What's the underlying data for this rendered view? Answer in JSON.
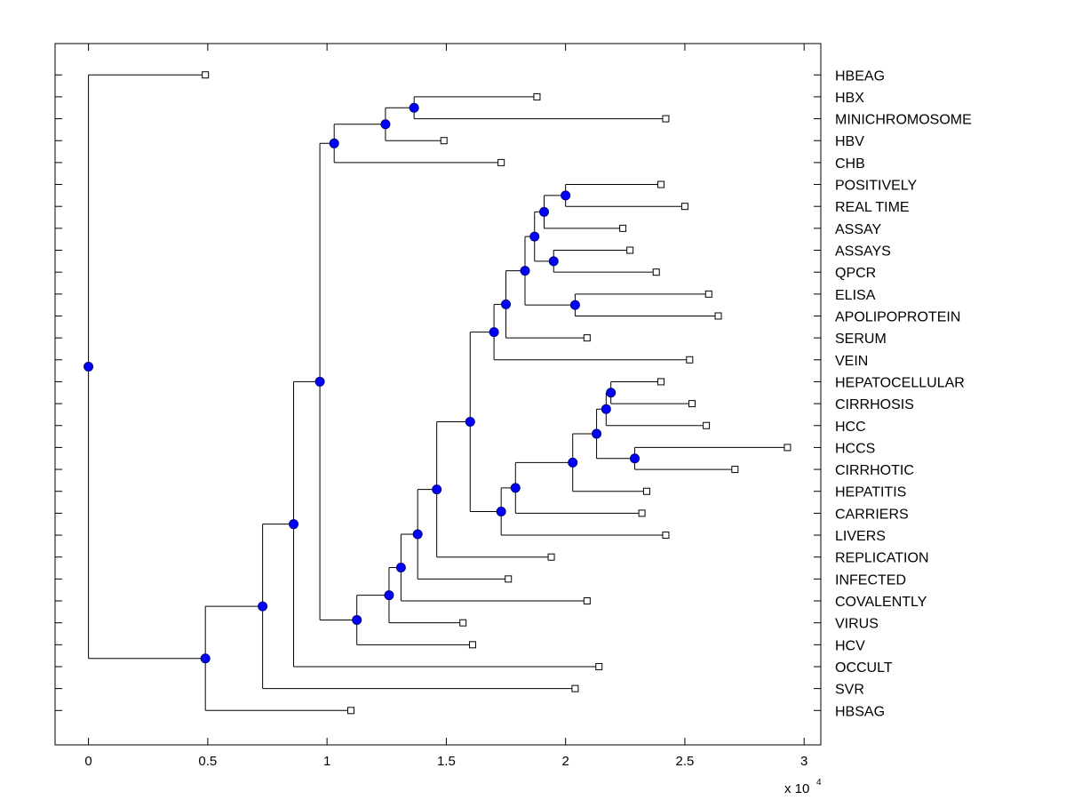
{
  "chart_data": {
    "type": "dendrogram",
    "title": "",
    "xlabel": "",
    "x_multiplier": "x 10",
    "x_multiplier_exponent": "4",
    "xlim": [
      -0.14,
      3.07
    ],
    "x_ticks": [
      {
        "value": 0,
        "label": "0"
      },
      {
        "value": 0.5,
        "label": "0.5"
      },
      {
        "value": 1,
        "label": "1"
      },
      {
        "value": 1.5,
        "label": "1.5"
      },
      {
        "value": 2,
        "label": "2"
      },
      {
        "value": 2.5,
        "label": "2.5"
      },
      {
        "value": 3,
        "label": "3"
      }
    ],
    "leaves": [
      {
        "label": "HBEAG",
        "x": 0.49
      },
      {
        "label": "HBX",
        "x": 1.88
      },
      {
        "label": "MINICHROMOSOME",
        "x": 2.42
      },
      {
        "label": "HBV",
        "x": 1.49
      },
      {
        "label": "CHB",
        "x": 1.73
      },
      {
        "label": "POSITIVELY",
        "x": 2.4
      },
      {
        "label": "REAL TIME",
        "x": 2.5
      },
      {
        "label": "ASSAY",
        "x": 2.24
      },
      {
        "label": "ASSAYS",
        "x": 2.27
      },
      {
        "label": "QPCR",
        "x": 2.38
      },
      {
        "label": "ELISA",
        "x": 2.6
      },
      {
        "label": "APOLIPOPROTEIN",
        "x": 2.64
      },
      {
        "label": "SERUM",
        "x": 2.09
      },
      {
        "label": "VEIN",
        "x": 2.52
      },
      {
        "label": "HEPATOCELLULAR",
        "x": 2.4
      },
      {
        "label": "CIRRHOSIS",
        "x": 2.53
      },
      {
        "label": "HCC",
        "x": 2.59
      },
      {
        "label": "HCCS",
        "x": 2.93
      },
      {
        "label": "CIRRHOTIC",
        "x": 2.71
      },
      {
        "label": "HEPATITIS",
        "x": 2.34
      },
      {
        "label": "CARRIERS",
        "x": 2.32
      },
      {
        "label": "LIVERS",
        "x": 2.42
      },
      {
        "label": "REPLICATION",
        "x": 1.94
      },
      {
        "label": "INFECTED",
        "x": 1.76
      },
      {
        "label": "COVALENTLY",
        "x": 2.09
      },
      {
        "label": "VIRUS",
        "x": 1.57
      },
      {
        "label": "HCV",
        "x": 1.61
      },
      {
        "label": "OCCULT",
        "x": 2.14
      },
      {
        "label": "SVR",
        "x": 2.04
      },
      {
        "label": "HBSAG",
        "x": 1.1
      }
    ],
    "nodes": [
      {
        "id": "n1",
        "x": 1.365,
        "children": [
          1,
          2
        ]
      },
      {
        "id": "n2",
        "x": 1.245,
        "children": [
          "n1",
          3
        ]
      },
      {
        "id": "n3",
        "x": 1.03,
        "children": [
          "n2",
          4
        ]
      },
      {
        "id": "n4",
        "x": 2.0,
        "children": [
          5,
          6
        ]
      },
      {
        "id": "n5",
        "x": 1.91,
        "children": [
          "n4",
          7
        ]
      },
      {
        "id": "n6",
        "x": 1.95,
        "children": [
          8,
          9
        ]
      },
      {
        "id": "n7",
        "x": 1.87,
        "children": [
          "n5",
          "n6"
        ]
      },
      {
        "id": "n8",
        "x": 2.04,
        "children": [
          10,
          11
        ]
      },
      {
        "id": "n9",
        "x": 1.83,
        "children": [
          "n7",
          "n8"
        ]
      },
      {
        "id": "n10",
        "x": 1.75,
        "children": [
          "n9",
          12
        ]
      },
      {
        "id": "n11",
        "x": 1.7,
        "children": [
          "n10",
          13
        ]
      },
      {
        "id": "n12",
        "x": 2.19,
        "children": [
          14,
          15
        ]
      },
      {
        "id": "n13",
        "x": 2.17,
        "children": [
          "n12",
          16
        ]
      },
      {
        "id": "n14",
        "x": 2.29,
        "children": [
          17,
          18
        ]
      },
      {
        "id": "n15",
        "x": 2.13,
        "children": [
          "n13",
          "n14"
        ]
      },
      {
        "id": "n16",
        "x": 2.03,
        "children": [
          "n15",
          19
        ]
      },
      {
        "id": "n17",
        "x": 1.79,
        "children": [
          "n16",
          20
        ]
      },
      {
        "id": "n18",
        "x": 1.73,
        "children": [
          "n17",
          21
        ]
      },
      {
        "id": "n19",
        "x": 1.6,
        "children": [
          "n11",
          "n18"
        ]
      },
      {
        "id": "n20",
        "x": 1.46,
        "children": [
          "n19",
          22
        ]
      },
      {
        "id": "n21",
        "x": 1.38,
        "children": [
          "n20",
          23
        ]
      },
      {
        "id": "n22",
        "x": 1.31,
        "children": [
          "n21",
          24
        ]
      },
      {
        "id": "n23",
        "x": 1.26,
        "children": [
          "n22",
          25
        ]
      },
      {
        "id": "n24",
        "x": 1.125,
        "children": [
          "n23",
          26
        ]
      },
      {
        "id": "n25",
        "x": 0.97,
        "children": [
          "n3",
          "n24"
        ]
      },
      {
        "id": "n26",
        "x": 0.86,
        "children": [
          "n25",
          27
        ]
      },
      {
        "id": "n27",
        "x": 0.73,
        "children": [
          "n26",
          28
        ]
      },
      {
        "id": "n28",
        "x": 0.49,
        "children": [
          "n27",
          29
        ]
      },
      {
        "id": "n29",
        "x": 0.0,
        "children": [
          0,
          "n28"
        ]
      }
    ],
    "colors": {
      "node_fill": "#0000ff",
      "leaf_fill": "#ffffff",
      "line": "#000000"
    }
  }
}
